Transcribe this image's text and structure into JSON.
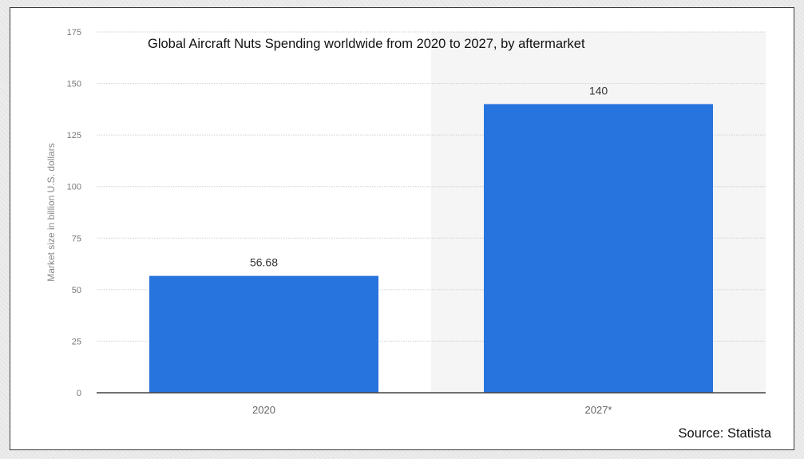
{
  "chart_data": {
    "type": "bar",
    "title": "Global Aircraft Nuts Spending worldwide from 2020 to 2027, by aftermarket",
    "xlabel": "",
    "ylabel": "Market size in billion U.S. dollars",
    "categories": [
      "2020",
      "2027*"
    ],
    "values": [
      56.68,
      140
    ],
    "data_labels": [
      "56.68",
      "140"
    ],
    "ylim": [
      0,
      175
    ],
    "yticks": [
      0,
      25,
      50,
      75,
      100,
      125,
      150,
      175
    ],
    "grid": true,
    "legend": "none",
    "bar_color": "#2874de",
    "forecast_band_color": "#f5f5f5",
    "source": "Source: Statista"
  }
}
